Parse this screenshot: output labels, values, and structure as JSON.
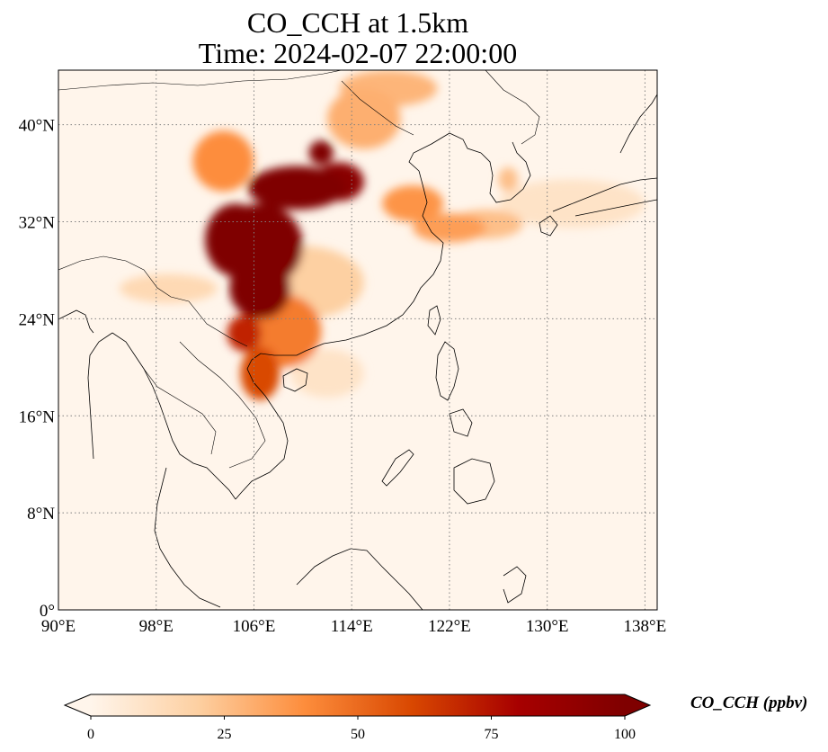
{
  "title": {
    "line1": "CO_CCH at 1.5km",
    "line2": "Time: 2024-02-07 22:00:00"
  },
  "map": {
    "projection": "PlateCarree",
    "extent": {
      "lon_min": 90,
      "lon_max": 139,
      "lat_min": 0,
      "lat_max": 44.5
    },
    "grid": "on, dotted",
    "lon_ticks": [
      {
        "value": 90,
        "label": "90°E"
      },
      {
        "value": 98,
        "label": "98°E"
      },
      {
        "value": 106,
        "label": "106°E"
      },
      {
        "value": 114,
        "label": "114°E"
      },
      {
        "value": 122,
        "label": "122°E"
      },
      {
        "value": 130,
        "label": "130°E"
      },
      {
        "value": 138,
        "label": "138°E"
      }
    ],
    "lat_ticks": [
      {
        "value": 0,
        "label": "0°"
      },
      {
        "value": 8,
        "label": "8°N"
      },
      {
        "value": 16,
        "label": "16°N"
      },
      {
        "value": 24,
        "label": "24°N"
      },
      {
        "value": 32,
        "label": "32°N"
      },
      {
        "value": 40,
        "label": "40°N"
      }
    ],
    "plumes": [
      {
        "lon": 106.5,
        "lat": 30.0,
        "rx": 3.5,
        "ry": 3.5,
        "value": 100
      },
      {
        "lon": 104.5,
        "lat": 30.5,
        "rx": 2.5,
        "ry": 3.0,
        "value": 100
      },
      {
        "lon": 106.5,
        "lat": 26.5,
        "rx": 2.5,
        "ry": 2.5,
        "value": 100
      },
      {
        "lon": 109.5,
        "lat": 34.8,
        "rx": 4.0,
        "ry": 1.8,
        "value": 100
      },
      {
        "lon": 111.5,
        "lat": 37.7,
        "rx": 1.0,
        "ry": 1.0,
        "value": 100
      },
      {
        "lon": 113.0,
        "lat": 35.3,
        "rx": 2.0,
        "ry": 1.6,
        "value": 95
      },
      {
        "lon": 105.2,
        "lat": 22.8,
        "rx": 1.4,
        "ry": 1.5,
        "value": 70
      },
      {
        "lon": 106.5,
        "lat": 19.5,
        "rx": 1.6,
        "ry": 2.2,
        "value": 60
      },
      {
        "lon": 108.5,
        "lat": 23.0,
        "rx": 3.0,
        "ry": 3.0,
        "value": 45
      },
      {
        "lon": 103.5,
        "lat": 37.0,
        "rx": 2.5,
        "ry": 2.5,
        "value": 40
      },
      {
        "lon": 119.0,
        "lat": 33.5,
        "rx": 2.5,
        "ry": 1.5,
        "value": 38
      },
      {
        "lon": 122.0,
        "lat": 31.5,
        "rx": 3.0,
        "ry": 1.2,
        "value": 35
      },
      {
        "lon": 115.0,
        "lat": 40.5,
        "rx": 3.0,
        "ry": 2.5,
        "value": 30
      },
      {
        "lon": 117.0,
        "lat": 43.0,
        "rx": 4.0,
        "ry": 1.5,
        "value": 28
      },
      {
        "lon": 125.0,
        "lat": 31.8,
        "rx": 3.0,
        "ry": 1.2,
        "value": 25
      },
      {
        "lon": 126.8,
        "lat": 35.5,
        "rx": 0.8,
        "ry": 1.0,
        "value": 25
      },
      {
        "lon": 110.0,
        "lat": 27.0,
        "rx": 5.0,
        "ry": 3.0,
        "value": 20
      },
      {
        "lon": 99.0,
        "lat": 26.5,
        "rx": 4.0,
        "ry": 1.2,
        "value": 15
      },
      {
        "lon": 112.0,
        "lat": 19.5,
        "rx": 3.0,
        "ry": 2.0,
        "value": 10
      },
      {
        "lon": 132.0,
        "lat": 33.5,
        "rx": 6.0,
        "ry": 2.0,
        "value": 10
      }
    ]
  },
  "colorbar": {
    "title": "CO_CCH (ppbv)",
    "min": 0,
    "max": 100,
    "extend": "both",
    "ticks": [
      {
        "value": 0,
        "label": "0"
      },
      {
        "value": 25,
        "label": "25"
      },
      {
        "value": 50,
        "label": "50"
      },
      {
        "value": 75,
        "label": "75"
      },
      {
        "value": 100,
        "label": "100"
      }
    ],
    "colors": [
      "#fff5eb",
      "#fdd0a2",
      "#fd8d3c",
      "#d94801",
      "#a70000",
      "#7f0000"
    ]
  }
}
